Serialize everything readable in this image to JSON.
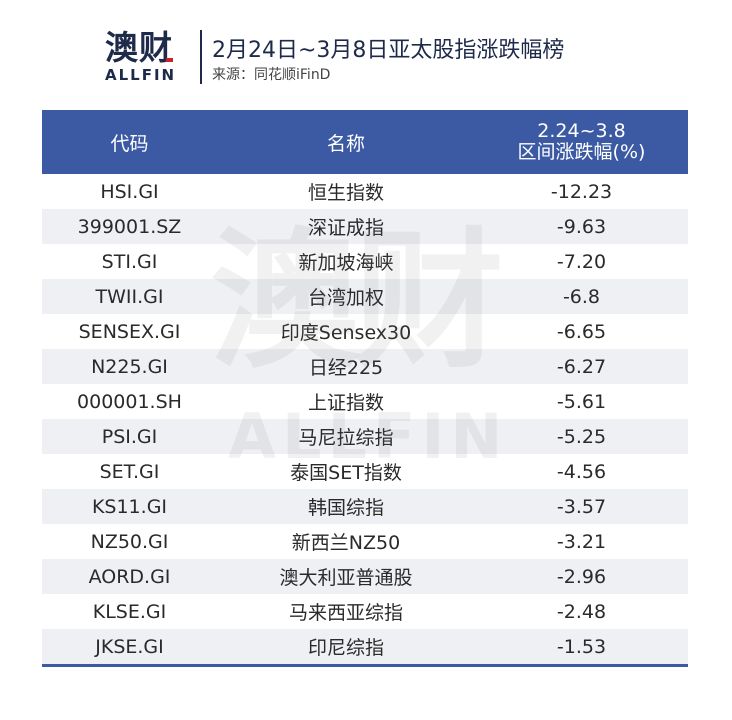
{
  "header": {
    "logo_cn": "澳财",
    "logo_en": "ALLFIN",
    "title": "2月24日~3月8日亚太股指涨跌幅榜",
    "source": "来源：同花顺iFinD"
  },
  "table": {
    "headers": {
      "code": "代码",
      "name": "名称",
      "change_line1": "2.24~3.8",
      "change_line2": "区间涨跌幅(%)"
    },
    "rows": [
      {
        "code": "HSI.GI",
        "name": "恒生指数",
        "change": "-12.23"
      },
      {
        "code": "399001.SZ",
        "name": "深证成指",
        "change": "-9.63"
      },
      {
        "code": "STI.GI",
        "name": "新加坡海峡",
        "change": "-7.20"
      },
      {
        "code": "TWII.GI",
        "name": "台湾加权",
        "change": "-6.8"
      },
      {
        "code": "SENSEX.GI",
        "name": "印度Sensex30",
        "change": "-6.65"
      },
      {
        "code": "N225.GI",
        "name": "日经225",
        "change": "-6.27"
      },
      {
        "code": "000001.SH",
        "name": "上证指数",
        "change": "-5.61"
      },
      {
        "code": "PSI.GI",
        "name": "马尼拉综指",
        "change": "-5.25"
      },
      {
        "code": "SET.GI",
        "name": "泰国SET指数",
        "change": "-4.56"
      },
      {
        "code": "KS11.GI",
        "name": "韩国综指",
        "change": "-3.57"
      },
      {
        "code": "NZ50.GI",
        "name": "新西兰NZ50",
        "change": "-3.21"
      },
      {
        "code": "AORD.GI",
        "name": "澳大利亚普通股",
        "change": "-2.96"
      },
      {
        "code": "KLSE.GI",
        "name": "马来西亚综指",
        "change": "-2.48"
      },
      {
        "code": "JKSE.GI",
        "name": "印尼综指",
        "change": "-1.53"
      }
    ]
  },
  "watermark": {
    "cn": "澳财",
    "en": "ALLFIN"
  },
  "colors": {
    "header_bg": "#3b5aa3",
    "brand_navy": "#1e2a4a",
    "accent_red": "#c8232b",
    "stripe": "#eef0f4"
  }
}
